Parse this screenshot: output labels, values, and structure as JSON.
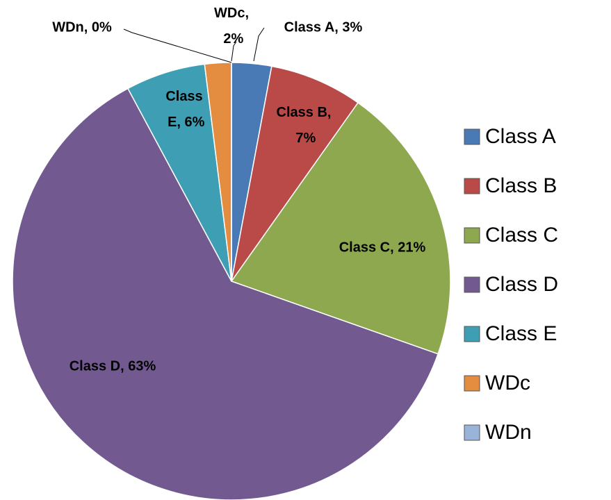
{
  "chart_data": {
    "type": "pie",
    "categories": [
      "Class A",
      "Class B",
      "Class C",
      "Class D",
      "Class E",
      "WDc",
      "WDn"
    ],
    "values": [
      3,
      7,
      21,
      63,
      6,
      2,
      0
    ],
    "value_labels": [
      "Class A, 3%",
      "Class B, 7%",
      "Class C, 21%",
      "Class D, 63%",
      "Class E, 6%",
      "WDc, 2%",
      "WDn, 0%"
    ],
    "colors": [
      "#4a7ab5",
      "#b94a48",
      "#8ea84f",
      "#725a91",
      "#3e9eb4",
      "#e48c3f",
      "#9ab3d9"
    ],
    "legend": "right"
  }
}
